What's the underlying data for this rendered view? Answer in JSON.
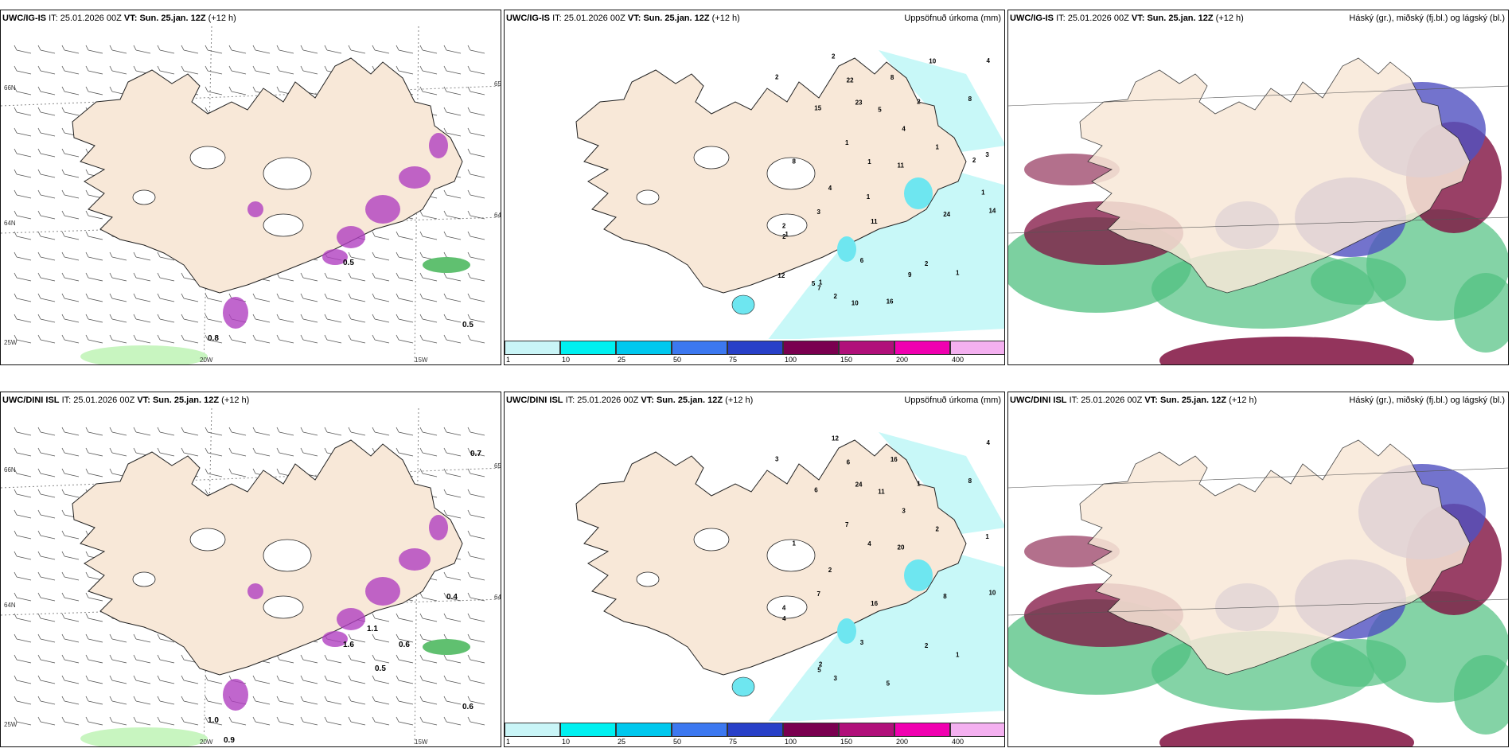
{
  "panels": [
    {
      "id": "p1",
      "model": "UWC/IG-IS",
      "it_label": "IT:",
      "it": "25.01.2026 00Z",
      "vt_label": "VT:",
      "vt": "Sun. 25.jan. 12Z",
      "lead": "(+12 h)",
      "right_title": "",
      "kind": "wind"
    },
    {
      "id": "p2",
      "model": "UWC/IG-IS",
      "it_label": "IT:",
      "it": "25.01.2026 00Z",
      "vt_label": "VT:",
      "vt": "Sun. 25.jan. 12Z",
      "lead": "(+12 h)",
      "right_title": "Uppsöfnuð úrkoma (mm)",
      "kind": "precip"
    },
    {
      "id": "p3",
      "model": "UWC/IG-IS",
      "it_label": "IT:",
      "it": "25.01.2026 00Z",
      "vt_label": "VT:",
      "vt": "Sun. 25.jan. 12Z",
      "lead": "(+12 h)",
      "right_title": "Háský (gr.), miðský (fj.bl.) og lágský (bl.)",
      "kind": "cloud"
    },
    {
      "id": "p4",
      "model": "UWC/DINI ISL",
      "it_label": "IT:",
      "it": "25.01.2026 00Z",
      "vt_label": "VT:",
      "vt": "Sun. 25.jan. 12Z",
      "lead": "(+12 h)",
      "right_title": "",
      "kind": "wind"
    },
    {
      "id": "p5",
      "model": "UWC/DINI ISL",
      "it_label": "IT:",
      "it": "25.01.2026 00Z",
      "vt_label": "VT:",
      "vt": "Sun. 25.jan. 12Z",
      "lead": "(+12 h)",
      "right_title": "Uppsöfnuð úrkoma (mm)",
      "kind": "precip"
    },
    {
      "id": "p6",
      "model": "UWC/DINI ISL",
      "it_label": "IT:",
      "it": "25.01.2026 00Z",
      "vt_label": "VT:",
      "vt": "Sun. 25.jan. 12Z",
      "lead": "(+12 h)",
      "right_title": "Háský (gr.), miðský (fj.bl.) og lágský (bl.)",
      "kind": "cloud"
    }
  ],
  "colorbar": {
    "colors": [
      "#c9f5f7",
      "#00f0f0",
      "#00c8ee",
      "#3c78f0",
      "#2840c8",
      "#7a0050",
      "#b0107a",
      "#f000b0",
      "#f4b0f0"
    ],
    "labels": [
      "1",
      "10",
      "25",
      "50",
      "75",
      "100",
      "150",
      "200",
      "400"
    ]
  },
  "wind_grid_labels": {
    "top": {
      "lat_left": "66N",
      "lat_right": "65N",
      "lat_left2": "64N",
      "lat_right2": "64N",
      "lon_a": "20W",
      "lon_b": "15W",
      "lat_bl": "25W"
    },
    "bottom": {
      "lat_left": "66N",
      "lat_right": "65N",
      "lat_left2": "64N",
      "lat_right2": "64N",
      "lon_a": "20W",
      "lon_b": "15W",
      "lat_bl": "25W"
    }
  },
  "wind_values": {
    "top": [
      "0.8",
      "0.5",
      "0.5"
    ],
    "bottom": [
      "1.0",
      "0.6",
      "1.6",
      "0.4",
      "0.7",
      "0.9",
      "1.1",
      "0.6",
      "0.5"
    ]
  },
  "precip_values": {
    "top": [
      "2",
      "1",
      "1",
      "2",
      "2",
      "2",
      "2",
      "1",
      "2",
      "8",
      "16",
      "14",
      "11",
      "7",
      "15",
      "3",
      "1",
      "1",
      "23",
      "22",
      "24",
      "5",
      "11",
      "4",
      "2",
      "6",
      "3",
      "4",
      "4",
      "8",
      "8",
      "9",
      "10",
      "2",
      "1",
      "12",
      "1",
      "10",
      "5",
      "1"
    ],
    "bottom": [
      "3",
      "2",
      "1",
      "4",
      "4",
      "3",
      "1",
      "7",
      "12",
      "8",
      "5",
      "10",
      "20",
      "5",
      "6",
      "7",
      "4",
      "2",
      "24",
      "6",
      "8",
      "11",
      "16",
      "3",
      "2",
      "3",
      "1",
      "4",
      "2",
      "1",
      "16"
    ]
  },
  "colors": {
    "land": "#f8e8d8",
    "sea": "#ffffff",
    "coast": "#222222",
    "precip_light": "#c8f8f8",
    "cyan": "#6ee6f0",
    "blue": "#4060e0",
    "magenta": "#b040c0",
    "green": "#50c080",
    "maroon": "#801040",
    "violet": "#5050c0"
  }
}
